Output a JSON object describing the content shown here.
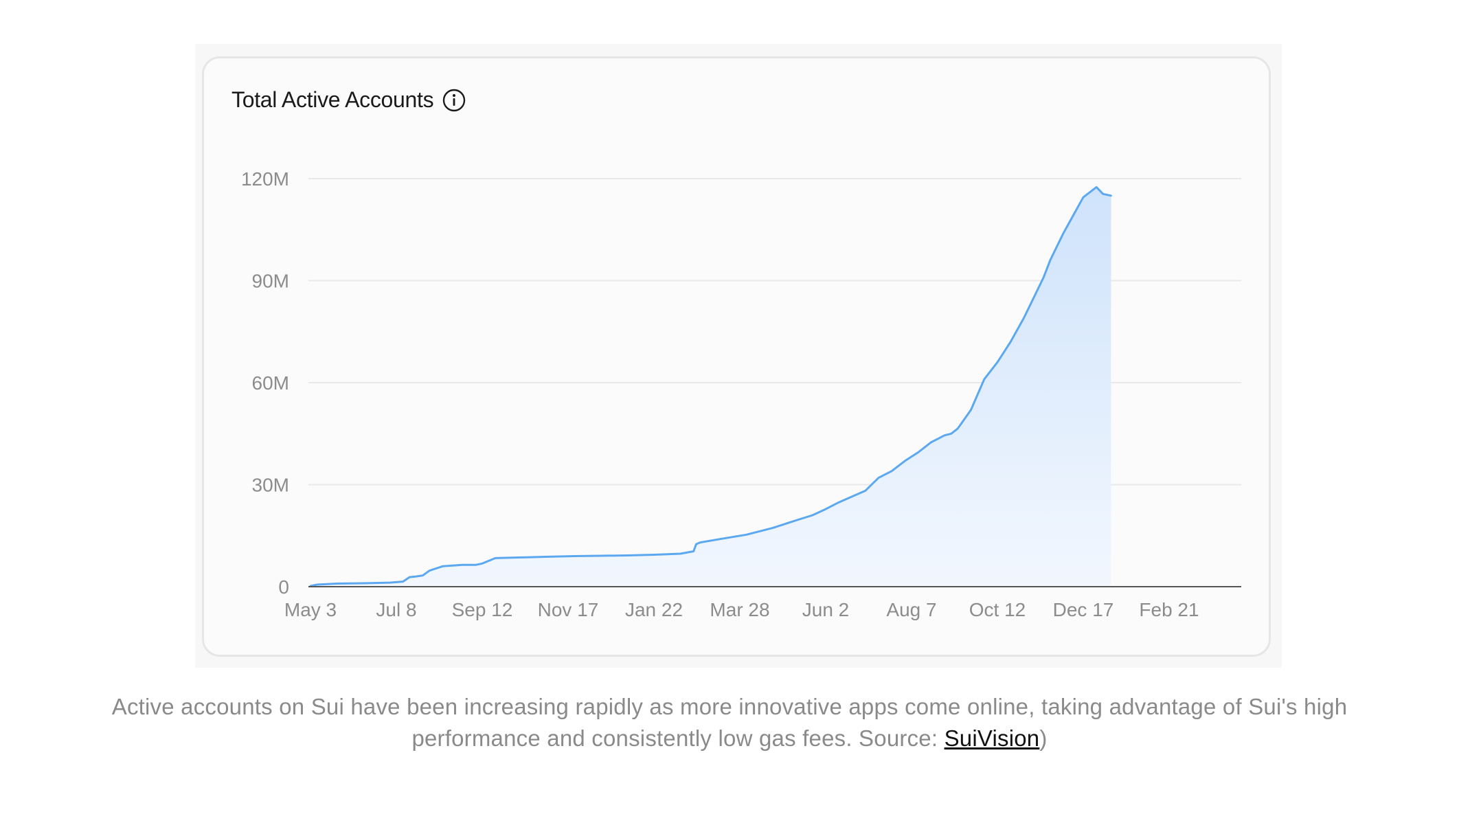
{
  "card": {
    "title": "Total Active Accounts",
    "info_icon": "info-circle-icon"
  },
  "caption": {
    "text": "Active accounts on Sui have been increasing rapidly as more innovative apps come online, taking advantage of Sui's high performance and consistently low gas fees. Source: ",
    "link_text": "SuiVision",
    "trailing": ")"
  },
  "colors": {
    "line": "#5ba8f0",
    "fill_top": "#cfe3fb",
    "fill_bottom": "#f2f7fe",
    "grid": "#e9e9e9",
    "baseline": "#555555"
  },
  "chart_data": {
    "type": "area",
    "title": "Total Active Accounts",
    "xlabel": "",
    "ylabel": "",
    "ylim": [
      0,
      120000000
    ],
    "yticks": [
      0,
      30000000,
      60000000,
      90000000,
      120000000
    ],
    "ytick_labels": [
      "0",
      "30M",
      "60M",
      "90M",
      "120M"
    ],
    "xtick_labels": [
      "May 3",
      "Jul 8",
      "Sep 12",
      "Nov 17",
      "Jan 22",
      "Mar 28",
      "Jun 2",
      "Aug 7",
      "Oct 12",
      "Dec 17",
      "Feb 21"
    ],
    "grid": true,
    "series": [
      {
        "x": [
          0,
          5,
          20,
          40,
          60,
          70,
          75,
          80,
          85,
          90,
          100,
          115,
          125,
          130,
          140,
          150,
          160,
          180,
          200,
          220,
          240,
          260,
          280,
          290,
          292,
          295,
          310,
          330,
          350,
          370,
          380,
          390,
          400,
          410,
          420,
          430,
          440,
          450,
          460,
          470,
          475,
          480,
          485,
          490,
          500,
          510,
          520,
          530,
          540,
          545,
          550,
          555,
          560,
          565,
          570,
          575,
          580,
          585,
          590,
          595,
          600,
          606
        ],
        "values": [
          200000,
          600000,
          900000,
          1000000,
          1200000,
          1500000,
          2800000,
          3000000,
          3300000,
          4700000,
          6000000,
          6400000,
          6400000,
          6800000,
          8400000,
          8500000,
          8600000,
          8800000,
          9000000,
          9100000,
          9200000,
          9400000,
          9700000,
          10400000,
          12500000,
          13000000,
          14000000,
          15300000,
          17300000,
          19800000,
          21000000,
          22800000,
          24800000,
          26500000,
          28200000,
          32000000,
          34000000,
          37000000,
          39500000,
          42500000,
          43500000,
          44500000,
          45000000,
          46500000,
          52000000,
          61000000,
          66000000,
          72000000,
          79000000,
          83000000,
          87000000,
          91000000,
          96000000,
          100000000,
          104000000,
          107500000,
          111000000,
          114500000,
          116000000,
          117500000,
          115500000,
          115000000
        ]
      }
    ]
  }
}
